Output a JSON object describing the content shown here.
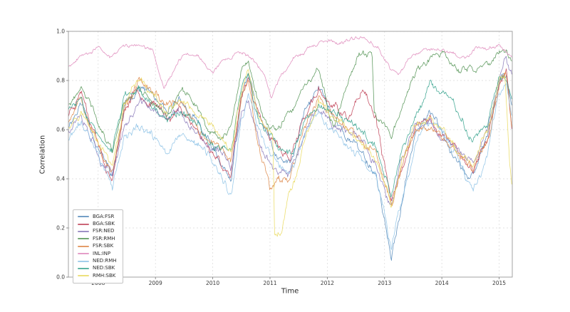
{
  "figure": {
    "background": "#ffffff"
  },
  "chart_data": {
    "type": "line",
    "title": "",
    "xlabel": "Time",
    "ylabel": "Correlation",
    "xlim": [
      2007.48,
      2015.23
    ],
    "ylim": [
      0,
      1.0
    ],
    "xtick_values": [
      2008,
      2009,
      2010,
      2011,
      2012,
      2013,
      2014,
      2015
    ],
    "xtick_labels": [
      "2008",
      "2009",
      "2010",
      "2011",
      "2012",
      "2013",
      "2014",
      "2015"
    ],
    "ytick_values": [
      0,
      0.2,
      0.4,
      0.6,
      0.8,
      1.0
    ],
    "ytick_labels": [
      "0.0",
      "0.2",
      "0.4",
      "0.6",
      "0.8",
      "1.0"
    ],
    "grid": {
      "style": "dashed",
      "color": "#d9d9d9"
    },
    "axis": {
      "spine_color": "#9a9a9a",
      "tick_color": "#777777",
      "tick_label_color": "#3a3a3a"
    },
    "legend": {
      "position": "lower left"
    },
    "noise": {
      "step": 0.012,
      "slow_decay": 0.985,
      "slow_amp": 0.016,
      "fast_decay": 0.6,
      "fast_amp": 0.05,
      "fast_weight": 0.35
    },
    "t_grid": [
      2007.48,
      2007.7,
      2007.95,
      2008.1,
      2008.25,
      2008.45,
      2008.7,
      2008.95,
      2009.2,
      2009.45,
      2009.7,
      2009.95,
      2010.15,
      2010.32,
      2010.5,
      2010.62,
      2010.8,
      2011.0,
      2011.15,
      2011.35,
      2011.6,
      2011.85,
      2012.1,
      2012.35,
      2012.6,
      2012.85,
      2013.0,
      2013.12,
      2013.3,
      2013.55,
      2013.8,
      2014.05,
      2014.3,
      2014.55,
      2014.8,
      2015.0,
      2015.12,
      2015.23
    ],
    "series": [
      {
        "name": "BGA:FSR",
        "color": "#5187b9",
        "seed": 11,
        "noise_scale": 1.0,
        "values": [
          0.62,
          0.72,
          0.58,
          0.5,
          0.42,
          0.68,
          0.78,
          0.74,
          0.62,
          0.68,
          0.6,
          0.5,
          0.44,
          0.34,
          0.7,
          0.8,
          0.62,
          0.5,
          0.44,
          0.4,
          0.62,
          0.72,
          0.62,
          0.56,
          0.5,
          0.42,
          0.25,
          0.07,
          0.3,
          0.6,
          0.65,
          0.6,
          0.5,
          0.42,
          0.6,
          0.82,
          0.86,
          0.72
        ]
      },
      {
        "name": "BGA:SBK",
        "color": "#bf4055",
        "seed": 23,
        "noise_scale": 1.0,
        "values": [
          0.66,
          0.78,
          0.62,
          0.52,
          0.44,
          0.72,
          0.82,
          0.76,
          0.68,
          0.72,
          0.64,
          0.55,
          0.5,
          0.45,
          0.74,
          0.82,
          0.66,
          0.55,
          0.5,
          0.47,
          0.65,
          0.75,
          0.68,
          0.62,
          0.72,
          0.6,
          0.4,
          0.25,
          0.42,
          0.58,
          0.62,
          0.56,
          0.5,
          0.44,
          0.58,
          0.8,
          0.84,
          0.56
        ]
      },
      {
        "name": "FSR:NED",
        "color": "#8676b8",
        "seed": 37,
        "noise_scale": 1.0,
        "values": [
          0.6,
          0.7,
          0.6,
          0.52,
          0.47,
          0.66,
          0.74,
          0.7,
          0.64,
          0.66,
          0.58,
          0.52,
          0.48,
          0.44,
          0.66,
          0.74,
          0.58,
          0.5,
          0.46,
          0.44,
          0.6,
          0.68,
          0.62,
          0.57,
          0.52,
          0.46,
          0.35,
          0.28,
          0.45,
          0.6,
          0.63,
          0.58,
          0.52,
          0.46,
          0.6,
          0.8,
          0.88,
          0.8
        ]
      },
      {
        "name": "FSR:RMH",
        "color": "#4f9150",
        "seed": 41,
        "noise_scale": 0.8,
        "anchors": [
          [
            2007.48,
            0.7
          ],
          [
            2007.7,
            0.75
          ],
          [
            2007.95,
            0.64
          ],
          [
            2008.1,
            0.57
          ],
          [
            2008.25,
            0.52
          ],
          [
            2008.45,
            0.72
          ],
          [
            2008.7,
            0.79
          ],
          [
            2008.95,
            0.74
          ],
          [
            2009.2,
            0.69
          ],
          [
            2009.45,
            0.79
          ],
          [
            2009.7,
            0.72
          ],
          [
            2009.95,
            0.62
          ],
          [
            2010.15,
            0.58
          ],
          [
            2010.32,
            0.62
          ],
          [
            2010.5,
            0.84
          ],
          [
            2010.62,
            0.87
          ],
          [
            2010.8,
            0.7
          ],
          [
            2011.0,
            0.6
          ],
          [
            2011.15,
            0.58
          ],
          [
            2011.35,
            0.64
          ],
          [
            2011.6,
            0.74
          ],
          [
            2011.85,
            0.79
          ],
          [
            2012.1,
            0.58
          ],
          [
            2012.35,
            0.76
          ],
          [
            2012.55,
            0.89
          ],
          [
            2012.78,
            0.88
          ],
          [
            2012.82,
            0.64
          ],
          [
            2013.0,
            0.6
          ],
          [
            2013.12,
            0.58
          ],
          [
            2013.3,
            0.7
          ],
          [
            2013.55,
            0.84
          ],
          [
            2013.8,
            0.88
          ],
          [
            2014.05,
            0.9
          ],
          [
            2014.3,
            0.82
          ],
          [
            2014.55,
            0.85
          ],
          [
            2014.8,
            0.87
          ],
          [
            2015.0,
            0.9
          ],
          [
            2015.12,
            0.91
          ],
          [
            2015.23,
            0.87
          ]
        ]
      },
      {
        "name": "FSR:SBK",
        "color": "#dd8544",
        "seed": 53,
        "noise_scale": 1.0,
        "values": [
          0.64,
          0.76,
          0.62,
          0.54,
          0.46,
          0.7,
          0.8,
          0.74,
          0.66,
          0.7,
          0.62,
          0.54,
          0.5,
          0.46,
          0.72,
          0.8,
          0.55,
          0.38,
          0.44,
          0.42,
          0.64,
          0.74,
          0.66,
          0.6,
          0.55,
          0.48,
          0.38,
          0.28,
          0.45,
          0.62,
          0.66,
          0.6,
          0.54,
          0.46,
          0.6,
          0.8,
          0.84,
          0.62
        ]
      },
      {
        "name": "INL:INP",
        "color": "#de86ba",
        "seed": 67,
        "noise_scale": 0.45,
        "anchors": [
          [
            2007.48,
            0.86
          ],
          [
            2007.75,
            0.92
          ],
          [
            2008.0,
            0.95
          ],
          [
            2008.2,
            0.9
          ],
          [
            2008.45,
            0.95
          ],
          [
            2008.7,
            0.96
          ],
          [
            2008.95,
            0.92
          ],
          [
            2009.15,
            0.76
          ],
          [
            2009.3,
            0.83
          ],
          [
            2009.5,
            0.9
          ],
          [
            2009.75,
            0.9
          ],
          [
            2010.0,
            0.84
          ],
          [
            2010.2,
            0.9
          ],
          [
            2010.45,
            0.93
          ],
          [
            2010.7,
            0.9
          ],
          [
            2010.9,
            0.83
          ],
          [
            2011.02,
            0.74
          ],
          [
            2011.2,
            0.84
          ],
          [
            2011.45,
            0.92
          ],
          [
            2011.7,
            0.94
          ],
          [
            2012.0,
            0.95
          ],
          [
            2012.3,
            0.94
          ],
          [
            2012.6,
            0.96
          ],
          [
            2012.9,
            0.94
          ],
          [
            2013.1,
            0.85
          ],
          [
            2013.25,
            0.83
          ],
          [
            2013.5,
            0.91
          ],
          [
            2013.75,
            0.94
          ],
          [
            2014.0,
            0.95
          ],
          [
            2014.2,
            0.93
          ],
          [
            2014.4,
            0.91
          ],
          [
            2014.6,
            0.95
          ],
          [
            2014.85,
            0.96
          ],
          [
            2015.05,
            0.96
          ],
          [
            2015.23,
            0.92
          ]
        ]
      },
      {
        "name": "NED:RMH",
        "color": "#8cc2e6",
        "seed": 71,
        "noise_scale": 1.0,
        "values": [
          0.56,
          0.62,
          0.52,
          0.44,
          0.36,
          0.56,
          0.6,
          0.56,
          0.5,
          0.55,
          0.52,
          0.46,
          0.4,
          0.3,
          0.6,
          0.7,
          0.55,
          0.46,
          0.42,
          0.37,
          0.52,
          0.62,
          0.56,
          0.52,
          0.46,
          0.4,
          0.25,
          0.1,
          0.28,
          0.5,
          0.58,
          0.52,
          0.46,
          0.36,
          0.52,
          0.76,
          0.8,
          0.66
        ]
      },
      {
        "name": "NED:SBK",
        "color": "#33a28c",
        "seed": 83,
        "noise_scale": 1.0,
        "values": [
          0.68,
          0.72,
          0.62,
          0.54,
          0.5,
          0.7,
          0.76,
          0.72,
          0.66,
          0.7,
          0.64,
          0.56,
          0.52,
          0.5,
          0.76,
          0.83,
          0.64,
          0.54,
          0.5,
          0.48,
          0.64,
          0.72,
          0.64,
          0.58,
          0.54,
          0.48,
          0.38,
          0.3,
          0.5,
          0.66,
          0.78,
          0.74,
          0.62,
          0.56,
          0.66,
          0.84,
          0.87,
          0.78
        ]
      },
      {
        "name": "RMH:SBK",
        "color": "#e9d95c",
        "seed": 97,
        "noise_scale": 0.9,
        "anchors": [
          [
            2007.48,
            0.62
          ],
          [
            2007.7,
            0.7
          ],
          [
            2007.95,
            0.58
          ],
          [
            2008.1,
            0.5
          ],
          [
            2008.25,
            0.45
          ],
          [
            2008.45,
            0.68
          ],
          [
            2008.7,
            0.76
          ],
          [
            2008.95,
            0.72
          ],
          [
            2009.2,
            0.64
          ],
          [
            2009.45,
            0.68
          ],
          [
            2009.7,
            0.6
          ],
          [
            2009.95,
            0.52
          ],
          [
            2010.15,
            0.48
          ],
          [
            2010.32,
            0.44
          ],
          [
            2010.5,
            0.7
          ],
          [
            2010.62,
            0.78
          ],
          [
            2010.8,
            0.6
          ],
          [
            2011.05,
            0.55
          ],
          [
            2011.08,
            0.14
          ],
          [
            2011.2,
            0.15
          ],
          [
            2011.32,
            0.32
          ],
          [
            2011.45,
            0.4
          ],
          [
            2011.6,
            0.55
          ],
          [
            2011.85,
            0.7
          ],
          [
            2012.1,
            0.62
          ],
          [
            2012.35,
            0.58
          ],
          [
            2012.6,
            0.52
          ],
          [
            2012.85,
            0.46
          ],
          [
            2013.0,
            0.35
          ],
          [
            2013.12,
            0.25
          ],
          [
            2013.3,
            0.45
          ],
          [
            2013.55,
            0.6
          ],
          [
            2013.8,
            0.64
          ],
          [
            2014.05,
            0.58
          ],
          [
            2014.3,
            0.5
          ],
          [
            2014.55,
            0.44
          ],
          [
            2014.8,
            0.58
          ],
          [
            2015.0,
            0.78
          ],
          [
            2015.1,
            0.8
          ],
          [
            2015.18,
            0.45
          ],
          [
            2015.23,
            0.31
          ]
        ]
      }
    ]
  }
}
